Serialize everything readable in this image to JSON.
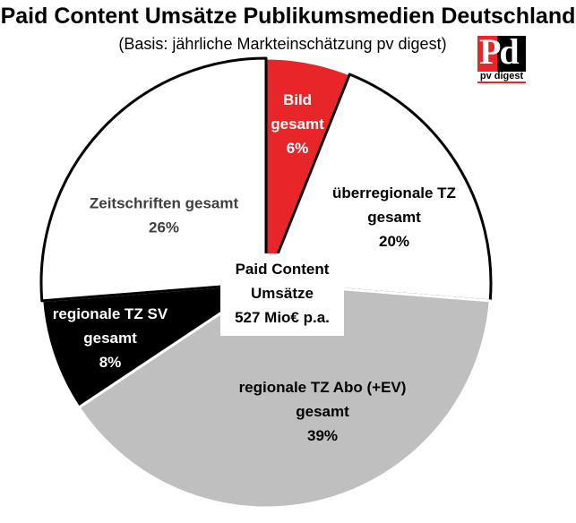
{
  "header": {
    "title": "Paid Content Umsätze Publikumsmedien Deutschland",
    "subtitle": "(Basis: jährliche Markteinschätzung pv digest)"
  },
  "logo": {
    "letters": "Pd",
    "name": "pv digest"
  },
  "center_label": {
    "line1": "Paid Content",
    "line2": "Umsätze",
    "line3": "527 Mio€ p.a."
  },
  "chart_data": {
    "type": "pie",
    "title": "Paid Content Umsätze Publikumsmedien Deutschland",
    "subtitle": "(Basis: jährliche Markteinschätzung pv digest)",
    "total_label": "527 Mio€ p.a.",
    "slices": [
      {
        "name": "Bild gesamt",
        "label_lines": [
          "Bild",
          "gesamt"
        ],
        "value": 6,
        "display": "6%",
        "color": "#e8262a",
        "text_color": "#ffffff"
      },
      {
        "name": "überregionale TZ gesamt",
        "label_lines": [
          "überregionale TZ",
          "gesamt"
        ],
        "value": 20,
        "display": "20%",
        "color": "#ffffff",
        "text_color": "#000000"
      },
      {
        "name": "regionale TZ Abo (+EV) gesamt",
        "label_lines": [
          "regionale TZ Abo (+EV)",
          "gesamt"
        ],
        "value": 39,
        "display": "39%",
        "color": "#bfbfbf",
        "text_color": "#000000"
      },
      {
        "name": "regionale TZ SV gesamt",
        "label_lines": [
          "regionale TZ SV",
          "gesamt"
        ],
        "value": 8,
        "display": "8%",
        "color": "#000000",
        "text_color": "#ffffff"
      },
      {
        "name": "Zeitschriften gesamt",
        "label_lines": [
          "Zeitschriften gesamt"
        ],
        "value": 26,
        "display": "26%",
        "color": "#ffffff",
        "text_color": "#404040"
      }
    ]
  }
}
